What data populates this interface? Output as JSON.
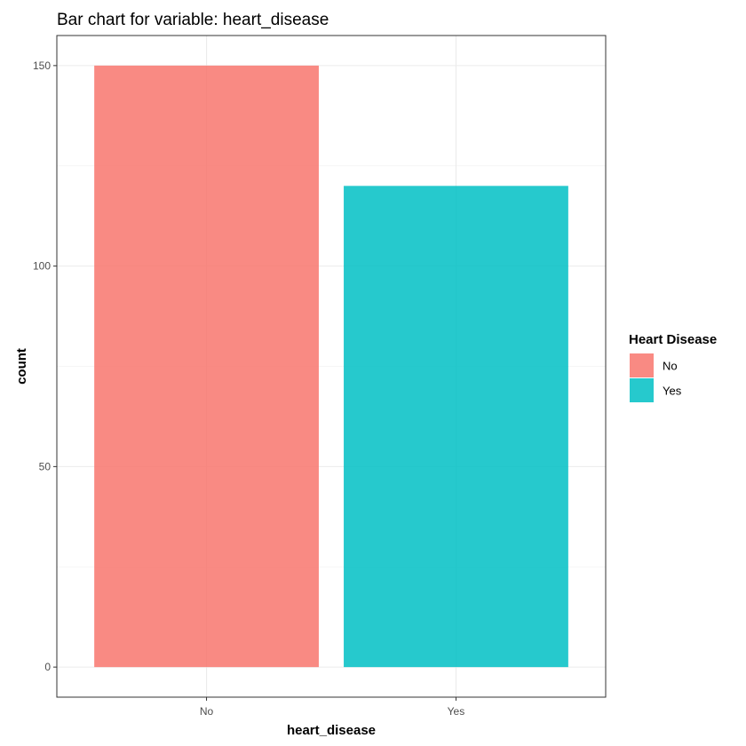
{
  "chart_data": {
    "type": "bar",
    "title": "Bar chart for variable: heart_disease",
    "xlabel": "heart_disease",
    "ylabel": "count",
    "categories": [
      "No",
      "Yes"
    ],
    "values": [
      150,
      120
    ],
    "colors": [
      "#F8766D",
      "#00BFC4"
    ],
    "bar_opacity": 0.85,
    "ylim": [
      -7.5,
      157.5
    ],
    "yticks": [
      0,
      50,
      100,
      150
    ],
    "yticks_minor": [
      25,
      75,
      125
    ],
    "grid": true,
    "theme": "bw",
    "legend": {
      "title": "Heart Disease",
      "position": "right",
      "entries": [
        "No",
        "Yes"
      ]
    }
  }
}
